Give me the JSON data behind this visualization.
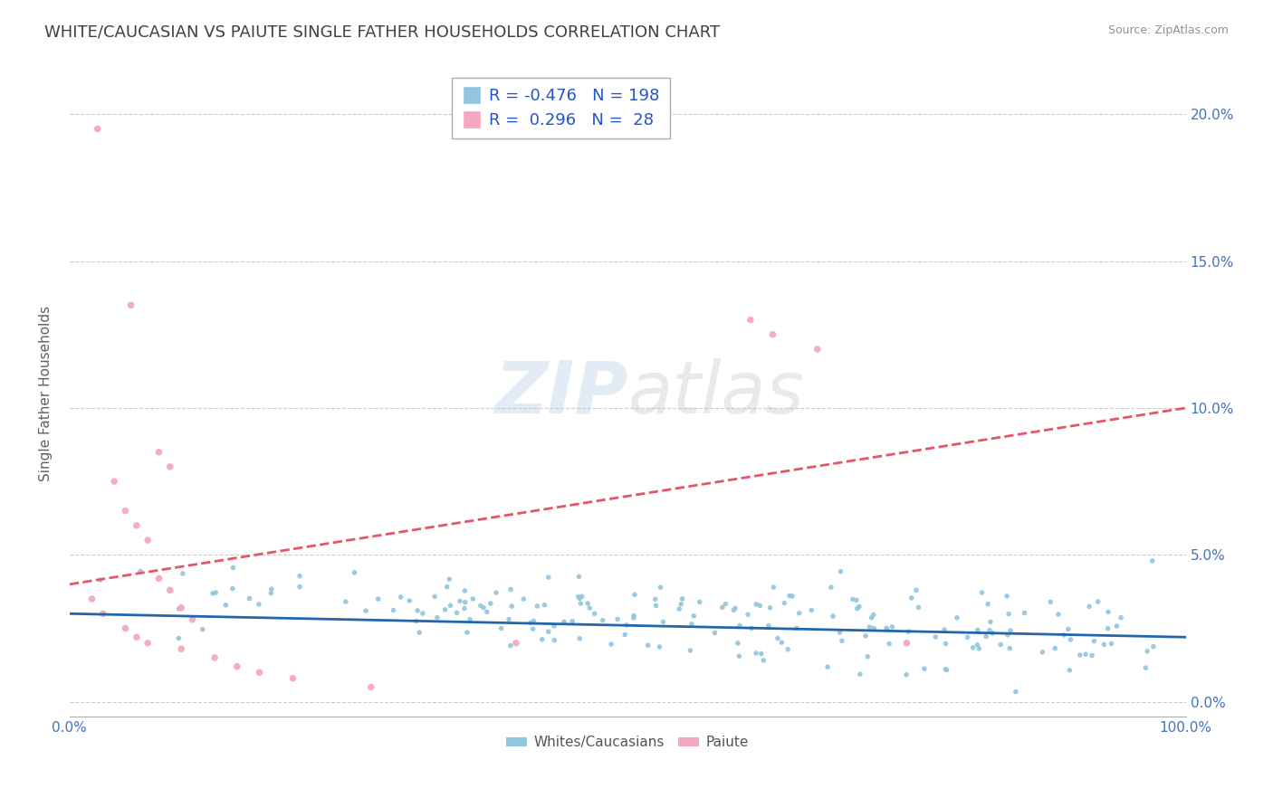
{
  "title": "WHITE/CAUCASIAN VS PAIUTE SINGLE FATHER HOUSEHOLDS CORRELATION CHART",
  "source": "Source: ZipAtlas.com",
  "ylabel": "Single Father Households",
  "xlim": [
    0.0,
    1.0
  ],
  "ylim": [
    -0.005,
    0.215
  ],
  "x_ticks": [
    0.0,
    1.0
  ],
  "x_tick_labels": [
    "0.0%",
    "100.0%"
  ],
  "y_ticks": [
    0.0,
    0.05,
    0.1,
    0.15,
    0.2
  ],
  "y_tick_labels": [
    "0.0%",
    "5.0%",
    "10.0%",
    "15.0%",
    "20.0%"
  ],
  "blue_color": "#92C5DE",
  "pink_color": "#F4A9C0",
  "blue_line_color": "#2166AC",
  "pink_line_color": "#E8546A",
  "blue_R": -0.476,
  "blue_N": 198,
  "pink_R": 0.296,
  "pink_N": 28,
  "legend_labels": [
    "Whites/Caucasians",
    "Paiute"
  ],
  "watermark_zip": "ZIP",
  "watermark_atlas": "atlas",
  "background_color": "#ffffff",
  "grid_color": "#cccccc",
  "title_color": "#404040",
  "axis_label_color": "#606060",
  "tick_label_color": "#4472C4",
  "source_color": "#909090",
  "legend_text_color": "#2255CC"
}
